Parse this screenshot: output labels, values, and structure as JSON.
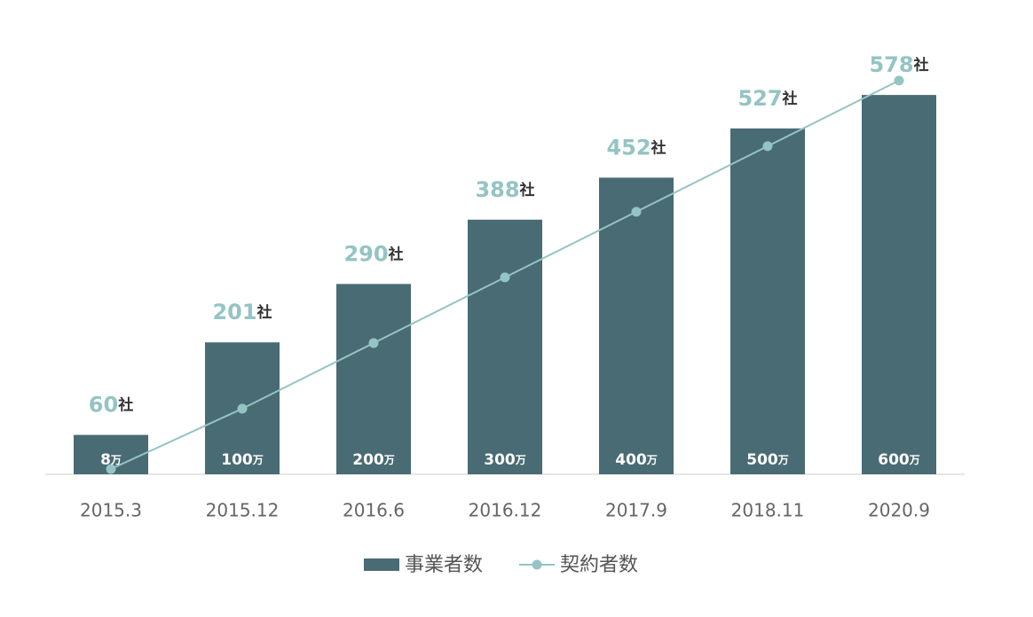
{
  "chart_data": {
    "type": "bar-line",
    "categories": [
      "2015.3",
      "2015.12",
      "2016.6",
      "2016.12",
      "2017.9",
      "2018.11",
      "2020.9"
    ],
    "series": [
      {
        "name": "事業者数",
        "type": "bar",
        "color": "#496b74",
        "values": [
          60,
          201,
          290,
          388,
          452,
          527,
          578
        ],
        "value_labels": [
          "60社",
          "201社",
          "290社",
          "388社",
          "452社",
          "527社",
          "578社"
        ]
      },
      {
        "name": "契約者数",
        "type": "line",
        "axis": "y2",
        "color": "#94c4c3",
        "values": [
          8,
          100,
          200,
          300,
          400,
          500,
          600
        ],
        "value_labels": [
          "8万",
          "100万",
          "200万",
          "300万",
          "400万",
          "500万",
          "600万"
        ]
      }
    ],
    "ylim": [
      0,
      720
    ],
    "y2lim": [
      0,
      720
    ]
  }
}
